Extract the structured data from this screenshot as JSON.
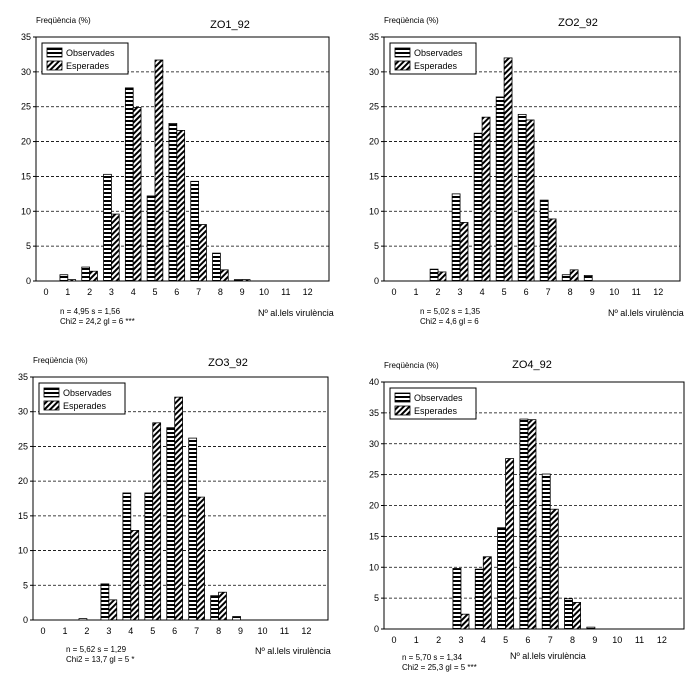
{
  "chart_data": [
    {
      "type": "bar",
      "title": "ZO1_92",
      "ylabel": "Freqüència (%)",
      "xlabel": "Nº al.lels virulència",
      "categories": [
        "0",
        "1",
        "2",
        "3",
        "4",
        "5",
        "6",
        "7",
        "8",
        "9",
        "10",
        "11",
        "12"
      ],
      "ylim": [
        0,
        35
      ],
      "yticks": [
        0,
        5,
        10,
        15,
        20,
        25,
        30,
        35
      ],
      "series": [
        {
          "name": "Observades",
          "values": [
            0,
            0.9,
            2.0,
            15.3,
            27.7,
            12.2,
            22.6,
            14.3,
            4.0,
            0.2,
            0,
            0,
            0
          ]
        },
        {
          "name": "Esperades",
          "values": [
            0,
            0.2,
            1.4,
            9.6,
            24.9,
            31.7,
            21.6,
            8.1,
            1.6,
            0.2,
            0,
            0,
            0
          ]
        }
      ],
      "grid": "horizontal-dashed",
      "legend": "top-left",
      "stats": [
        "n = 4,95   s = 1,56",
        "Chi2 = 24,2  gl = 6 ***"
      ]
    },
    {
      "type": "bar",
      "title": "ZO2_92",
      "ylabel": "Freqüència (%)",
      "xlabel": "Nº al.lels virulència",
      "categories": [
        "0",
        "1",
        "2",
        "3",
        "4",
        "5",
        "6",
        "7",
        "8",
        "9",
        "10",
        "11",
        "12"
      ],
      "ylim": [
        0,
        35
      ],
      "yticks": [
        0,
        5,
        10,
        15,
        20,
        25,
        30,
        35
      ],
      "series": [
        {
          "name": "Observades",
          "values": [
            0,
            0,
            1.7,
            12.5,
            21.2,
            26.4,
            23.9,
            11.6,
            0.9,
            0.8,
            0,
            0,
            0
          ]
        },
        {
          "name": "Esperades",
          "values": [
            0,
            0,
            1.3,
            8.4,
            23.5,
            32.0,
            23.1,
            8.9,
            1.6,
            0,
            0,
            0,
            0
          ]
        }
      ],
      "grid": "horizontal-dashed",
      "legend": "top-left",
      "stats": [
        "n = 5,02   s = 1,35",
        "Chi2 =  4,6  gl = 6"
      ]
    },
    {
      "type": "bar",
      "title": "ZO3_92",
      "ylabel": "Freqüència (%)",
      "xlabel": "Nº al.lels virulència",
      "categories": [
        "0",
        "1",
        "2",
        "3",
        "4",
        "5",
        "6",
        "7",
        "8",
        "9",
        "10",
        "11",
        "12"
      ],
      "ylim": [
        0,
        35
      ],
      "yticks": [
        0,
        5,
        10,
        15,
        20,
        25,
        30,
        35
      ],
      "series": [
        {
          "name": "Observades",
          "values": [
            0,
            0,
            0.2,
            5.2,
            18.3,
            18.3,
            27.7,
            26.2,
            3.5,
            0.5,
            0,
            0,
            0
          ]
        },
        {
          "name": "Esperades",
          "values": [
            0,
            0,
            0,
            2.9,
            12.9,
            28.4,
            32.1,
            17.7,
            4.0,
            0,
            0,
            0,
            0
          ]
        }
      ],
      "grid": "horizontal-dashed",
      "legend": "top-left",
      "stats": [
        "n = 5,62   s = 1,29",
        "Chi2 = 13,7  gl = 5 *"
      ]
    },
    {
      "type": "bar",
      "title": "ZO4_92",
      "ylabel": "Freqüència (%)",
      "xlabel": "Nº al.lels virulència",
      "categories": [
        "0",
        "1",
        "2",
        "3",
        "4",
        "5",
        "6",
        "7",
        "8",
        "9",
        "10",
        "11",
        "12"
      ],
      "ylim": [
        0,
        40
      ],
      "yticks": [
        0,
        5,
        10,
        15,
        20,
        25,
        30,
        35,
        40
      ],
      "series": [
        {
          "name": "Observades",
          "values": [
            0,
            0,
            0,
            9.8,
            9.7,
            16.4,
            34.0,
            25.1,
            4.9,
            0.3,
            0,
            0,
            0
          ]
        },
        {
          "name": "Esperades",
          "values": [
            0,
            0,
            0,
            2.4,
            11.7,
            27.6,
            33.9,
            19.4,
            4.3,
            0,
            0,
            0,
            0
          ]
        }
      ],
      "grid": "horizontal-dashed",
      "legend": "top-left",
      "stats": [
        "n = 5,70   s = 1,34",
        "Chi2 = 25,3  gl = 5 ***"
      ]
    }
  ]
}
